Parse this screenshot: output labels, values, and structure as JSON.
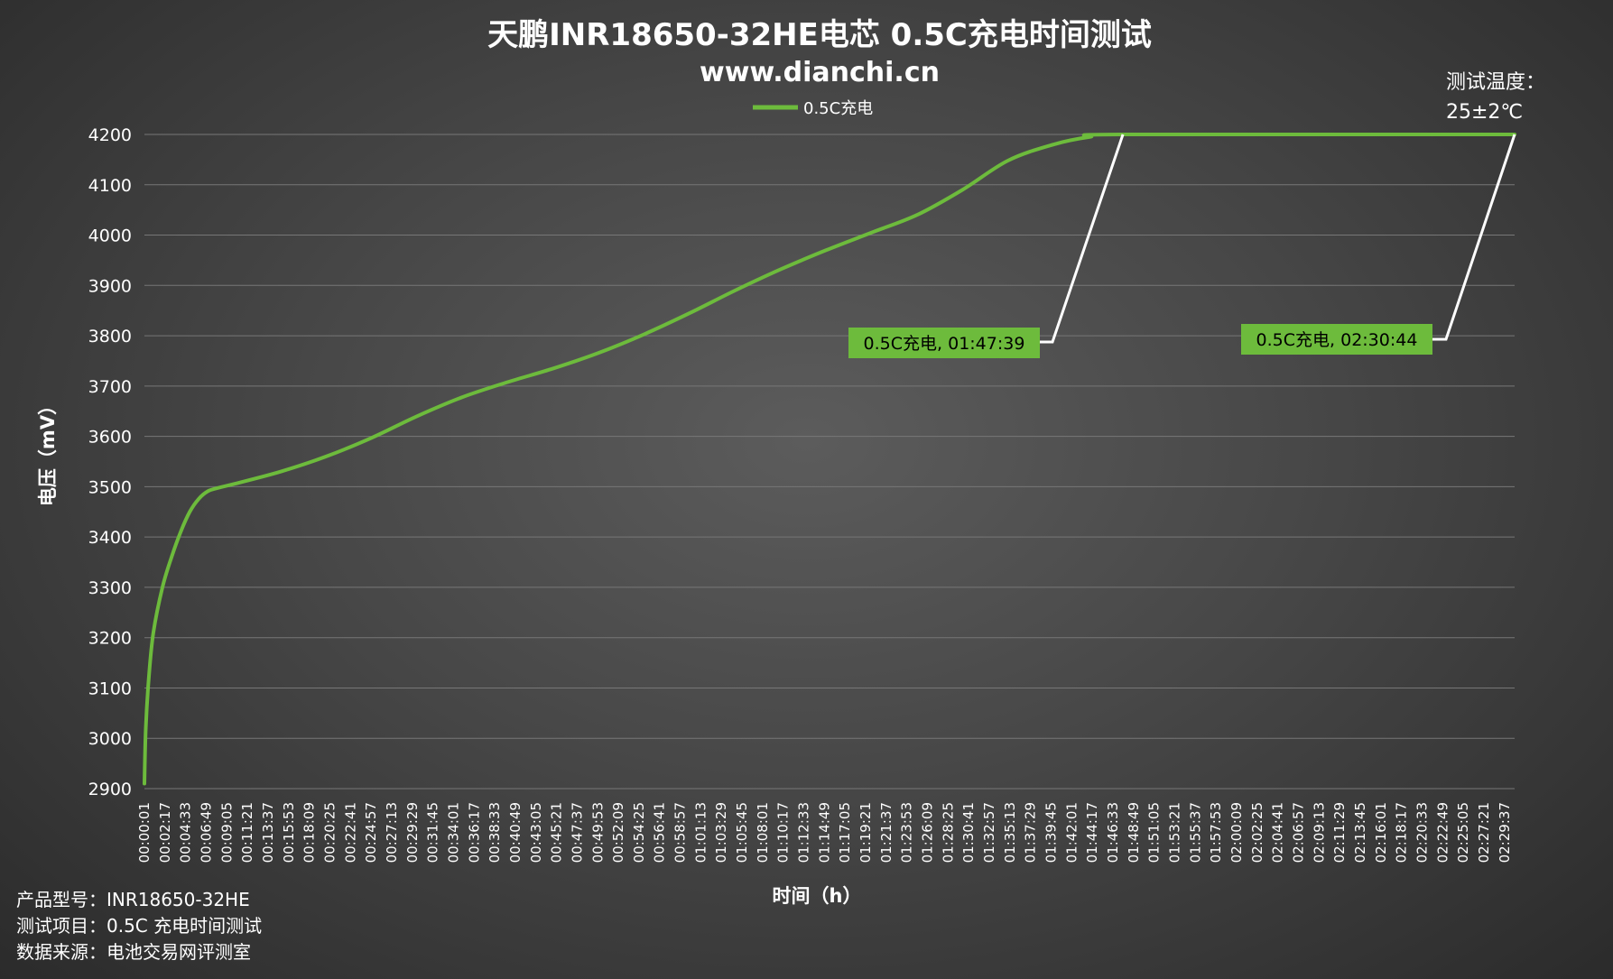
{
  "chart_data": {
    "type": "line",
    "title": "天鹏INR18650-32HE电芯 0.5C充电时间测试",
    "subtitle": "www.dianchi.cn",
    "xlabel": "时间（h）",
    "ylabel": "电压（mV）",
    "ylim": [
      2900,
      4200
    ],
    "yticks": [
      2900,
      3000,
      3100,
      3200,
      3300,
      3400,
      3500,
      3600,
      3700,
      3800,
      3900,
      4000,
      4100,
      4200
    ],
    "xlim_seconds": [
      1,
      9044
    ],
    "xticks": [
      "00:00:01",
      "00:02:17",
      "00:04:33",
      "00:06:49",
      "00:09:05",
      "00:11:21",
      "00:13:37",
      "00:15:53",
      "00:18:09",
      "00:20:25",
      "00:22:41",
      "00:24:57",
      "00:27:13",
      "00:29:29",
      "00:31:45",
      "00:34:01",
      "00:36:17",
      "00:38:33",
      "00:40:49",
      "00:43:05",
      "00:45:21",
      "00:47:37",
      "00:49:53",
      "00:52:09",
      "00:54:25",
      "00:56:41",
      "00:58:57",
      "01:01:13",
      "01:03:29",
      "01:05:45",
      "01:08:01",
      "01:10:17",
      "01:12:33",
      "01:14:49",
      "01:17:05",
      "01:19:21",
      "01:21:37",
      "01:23:53",
      "01:26:09",
      "01:28:25",
      "01:30:41",
      "01:32:57",
      "01:35:13",
      "01:37:29",
      "01:39:45",
      "01:42:01",
      "01:44:17",
      "01:46:33",
      "01:48:49",
      "01:51:05",
      "01:53:21",
      "01:55:37",
      "01:57:53",
      "02:00:09",
      "02:02:25",
      "02:04:41",
      "02:06:57",
      "02:09:13",
      "02:11:29",
      "02:13:45",
      "02:16:01",
      "02:18:17",
      "02:20:33",
      "02:22:49",
      "02:25:05",
      "02:27:21",
      "02:29:37"
    ],
    "legend_position": "top-center",
    "grid": true,
    "series": [
      {
        "name": "0.5C充电",
        "color": "#6dbb3c",
        "points": [
          [
            "00:00:01",
            2910
          ],
          [
            "00:00:10",
            3020
          ],
          [
            "00:00:30",
            3120
          ],
          [
            "00:01:00",
            3210
          ],
          [
            "00:02:00",
            3300
          ],
          [
            "00:03:00",
            3360
          ],
          [
            "00:04:00",
            3410
          ],
          [
            "00:05:00",
            3450
          ],
          [
            "00:06:00",
            3476
          ],
          [
            "00:07:00",
            3491
          ],
          [
            "00:08:00",
            3497
          ],
          [
            "00:10:00",
            3506
          ],
          [
            "00:15:00",
            3530
          ],
          [
            "00:20:00",
            3560
          ],
          [
            "00:25:00",
            3597
          ],
          [
            "00:30:00",
            3640
          ],
          [
            "00:35:00",
            3678
          ],
          [
            "00:40:00",
            3708
          ],
          [
            "00:45:00",
            3735
          ],
          [
            "00:50:00",
            3766
          ],
          [
            "00:55:00",
            3803
          ],
          [
            "01:00:00",
            3845
          ],
          [
            "01:05:00",
            3890
          ],
          [
            "01:10:00",
            3932
          ],
          [
            "01:15:00",
            3970
          ],
          [
            "01:20:00",
            4005
          ],
          [
            "01:25:00",
            4040
          ],
          [
            "01:30:00",
            4090
          ],
          [
            "01:35:00",
            4148
          ],
          [
            "01:40:00",
            4180
          ],
          [
            "01:44:00",
            4195
          ],
          [
            "01:47:39",
            4200
          ],
          [
            "02:30:44",
            4200
          ]
        ]
      }
    ],
    "annotations": [
      {
        "label": "0.5C充电, 01:47:39",
        "time": "01:47:39",
        "value": 4200
      },
      {
        "label": "0.5C充电, 02:30:44",
        "time": "02:30:44",
        "value": 4200
      }
    ]
  },
  "notes": {
    "product": "产品型号：INR18650-32HE",
    "test_item": "测试项目：0.5C 充电时间测试",
    "source": "数据来源：电池交易网评测室",
    "temp_label": "测试温度：",
    "temp_value": "25±2℃"
  },
  "colors": {
    "line": "#6dbb3c",
    "label_bg": "#6dbb3c",
    "leader": "#ffffff",
    "grid": "#777777"
  }
}
